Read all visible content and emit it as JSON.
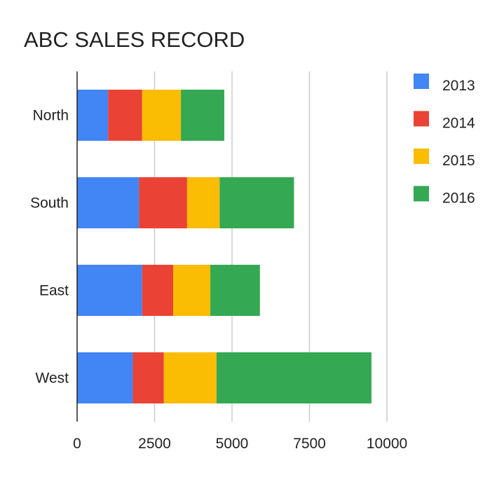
{
  "chart_data": {
    "type": "bar",
    "orientation": "horizontal",
    "stacked": true,
    "title": "ABC SALES RECORD",
    "xlabel": "",
    "ylabel": "",
    "categories": [
      "North",
      "South",
      "East",
      "West"
    ],
    "series": [
      {
        "name": "2013",
        "color": "#4285F4",
        "values": [
          1000,
          2000,
          2100,
          1800
        ]
      },
      {
        "name": "2014",
        "color": "#EA4335",
        "values": [
          1100,
          1550,
          1000,
          1000
        ]
      },
      {
        "name": "2015",
        "color": "#FBBC04",
        "values": [
          1250,
          1050,
          1200,
          1700
        ]
      },
      {
        "name": "2016",
        "color": "#34A853",
        "values": [
          1400,
          2400,
          1600,
          5000
        ]
      }
    ],
    "xlim": [
      0,
      10000
    ],
    "xticks": [
      "0",
      "2500",
      "5000",
      "7500",
      "10000"
    ],
    "xtick_values": [
      0,
      2500,
      5000,
      7500,
      10000
    ],
    "grid": "vertical",
    "legend_position": "right"
  }
}
